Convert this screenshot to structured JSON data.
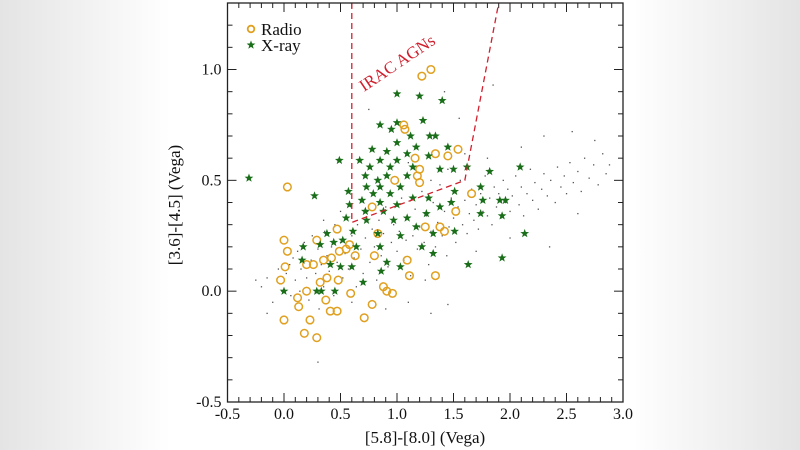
{
  "chart_data": {
    "type": "scatter",
    "xlabel": "[5.8]-[8.0] (Vega)",
    "ylabel": "[3.6]-[4.5] (Vega)",
    "xlim": [
      -0.5,
      3.0
    ],
    "ylim": [
      -0.5,
      1.3
    ],
    "xticks": [
      "-0.5",
      "0.0",
      "0.5",
      "1.0",
      "1.5",
      "2.0",
      "2.5",
      "3.0"
    ],
    "yticks": [
      "-0.5",
      "0.0",
      "0.5",
      "1.0"
    ],
    "grid": false,
    "legend_position": "top-left",
    "annotation": {
      "text": "IRAC AGNs",
      "color": "#d0202e"
    },
    "wedge": {
      "color": "#d0202e",
      "style": "dashed",
      "vertices": [
        [
          0.6,
          1.3
        ],
        [
          0.6,
          0.31
        ],
        [
          1.6,
          0.5
        ],
        [
          1.9,
          1.3
        ]
      ]
    },
    "series": [
      {
        "name": "",
        "marker": "dot",
        "color": "#555555",
        "points": [
          [
            -0.2,
            0.02
          ],
          [
            -0.15,
            0.06
          ],
          [
            -0.1,
            -0.05
          ],
          [
            -0.05,
            0.1
          ],
          [
            -0.02,
            0.0
          ],
          [
            0.02,
            0.08
          ],
          [
            0.05,
            0.12
          ],
          [
            0.06,
            -0.02
          ],
          [
            0.08,
            0.15
          ],
          [
            0.1,
            0.05
          ],
          [
            0.12,
            0.18
          ],
          [
            0.14,
            0.0
          ],
          [
            0.15,
            0.1
          ],
          [
            0.18,
            0.22
          ],
          [
            0.2,
            0.06
          ],
          [
            0.22,
            -0.04
          ],
          [
            0.24,
            0.14
          ],
          [
            0.25,
            0.25
          ],
          [
            0.28,
            0.08
          ],
          [
            0.3,
            0.19
          ],
          [
            0.31,
            -0.08
          ],
          [
            0.33,
            0.12
          ],
          [
            0.35,
            0.02
          ],
          [
            0.36,
            0.27
          ],
          [
            0.38,
            0.16
          ],
          [
            0.4,
            0.09
          ],
          [
            0.42,
            0.2
          ],
          [
            0.44,
            -0.02
          ],
          [
            0.45,
            0.3
          ],
          [
            0.47,
            0.13
          ],
          [
            0.5,
            0.22
          ],
          [
            0.52,
            0.06
          ],
          [
            0.54,
            0.17
          ],
          [
            0.55,
            0.33
          ],
          [
            0.57,
            0.1
          ],
          [
            0.6,
            0.25
          ],
          [
            0.62,
            0.15
          ],
          [
            0.64,
            0.02
          ],
          [
            0.65,
            0.3
          ],
          [
            0.68,
            0.19
          ],
          [
            0.7,
            0.08
          ],
          [
            0.72,
            0.24
          ],
          [
            0.74,
            0.36
          ],
          [
            0.76,
            0.13
          ],
          [
            0.78,
            0.28
          ],
          [
            0.8,
            0.2
          ],
          [
            0.82,
            0.05
          ],
          [
            0.84,
            0.32
          ],
          [
            0.86,
            0.16
          ],
          [
            0.88,
            0.26
          ],
          [
            0.9,
            0.38
          ],
          [
            0.92,
            0.11
          ],
          [
            0.95,
            0.22
          ],
          [
            0.97,
            0.3
          ],
          [
            1.0,
            0.18
          ],
          [
            1.02,
            0.27
          ],
          [
            1.04,
            0.42
          ],
          [
            1.06,
            0.14
          ],
          [
            1.08,
            0.23
          ],
          [
            1.1,
            0.33
          ],
          [
            1.12,
            0.07
          ],
          [
            1.14,
            0.25
          ],
          [
            1.16,
            0.37
          ],
          [
            1.18,
            0.19
          ],
          [
            1.2,
            0.29
          ],
          [
            1.22,
            0.45
          ],
          [
            1.24,
            0.22
          ],
          [
            1.26,
            0.34
          ],
          [
            1.28,
            0.12
          ],
          [
            1.3,
            0.27
          ],
          [
            1.32,
            0.4
          ],
          [
            1.34,
            0.2
          ],
          [
            1.36,
            0.31
          ],
          [
            1.38,
            0.48
          ],
          [
            1.4,
            0.25
          ],
          [
            1.42,
            0.36
          ],
          [
            1.44,
            0.16
          ],
          [
            1.46,
            0.29
          ],
          [
            1.48,
            0.42
          ],
          [
            1.5,
            0.33
          ],
          [
            1.52,
            0.22
          ],
          [
            1.54,
            0.38
          ],
          [
            1.56,
            0.5
          ],
          [
            1.58,
            0.3
          ],
          [
            1.6,
            0.41
          ],
          [
            1.62,
            0.26
          ],
          [
            1.64,
            0.35
          ],
          [
            1.66,
            0.46
          ],
          [
            1.68,
            0.32
          ],
          [
            1.7,
            0.39
          ],
          [
            1.72,
            0.28
          ],
          [
            1.74,
            0.44
          ],
          [
            1.76,
            0.36
          ],
          [
            1.78,
            0.52
          ],
          [
            1.8,
            0.34
          ],
          [
            1.82,
            0.42
          ],
          [
            1.84,
            0.3
          ],
          [
            1.86,
            0.47
          ],
          [
            1.88,
            0.38
          ],
          [
            1.9,
            0.44
          ],
          [
            1.92,
            0.33
          ],
          [
            1.94,
            0.5
          ],
          [
            1.96,
            0.4
          ],
          [
            1.98,
            0.46
          ],
          [
            2.0,
            0.36
          ],
          [
            2.02,
            0.43
          ],
          [
            2.05,
            0.52
          ],
          [
            2.08,
            0.39
          ],
          [
            2.1,
            0.47
          ],
          [
            2.12,
            0.34
          ],
          [
            2.15,
            0.44
          ],
          [
            2.18,
            0.55
          ],
          [
            2.2,
            0.41
          ],
          [
            2.22,
            0.49
          ],
          [
            2.25,
            0.37
          ],
          [
            2.28,
            0.46
          ],
          [
            2.3,
            0.53
          ],
          [
            2.33,
            0.43
          ],
          [
            2.36,
            0.5
          ],
          [
            2.4,
            0.4
          ],
          [
            2.42,
            0.56
          ],
          [
            2.45,
            0.47
          ],
          [
            2.48,
            0.52
          ],
          [
            2.5,
            0.44
          ],
          [
            2.53,
            0.58
          ],
          [
            2.56,
            0.49
          ],
          [
            2.6,
            0.54
          ],
          [
            2.63,
            0.45
          ],
          [
            2.66,
            0.6
          ],
          [
            2.7,
            0.51
          ],
          [
            2.74,
            0.57
          ],
          [
            2.78,
            0.48
          ],
          [
            2.82,
            0.62
          ],
          [
            2.85,
            0.53
          ],
          [
            2.88,
            0.57
          ],
          [
            1.3,
            0.5
          ],
          [
            1.1,
            0.58
          ],
          [
            1.45,
            0.55
          ],
          [
            1.6,
            0.62
          ],
          [
            1.8,
            0.6
          ],
          [
            2.1,
            0.65
          ],
          [
            2.3,
            0.7
          ],
          [
            2.55,
            0.72
          ],
          [
            2.75,
            0.68
          ],
          [
            1.42,
            0.9
          ],
          [
            0.75,
            0.82
          ],
          [
            1.55,
            0.78
          ],
          [
            1.85,
            0.93
          ],
          [
            0.9,
            -0.08
          ],
          [
            1.1,
            -0.05
          ],
          [
            1.45,
            -0.06
          ],
          [
            1.3,
            -0.1
          ],
          [
            0.3,
            -0.32
          ],
          [
            -0.15,
            -0.1
          ],
          [
            -0.25,
            0.05
          ],
          [
            2.0,
            0.24
          ],
          [
            2.35,
            0.2
          ],
          [
            2.6,
            0.35
          ],
          [
            1.7,
            0.18
          ],
          [
            1.25,
            0.05
          ],
          [
            0.6,
            -0.05
          ],
          [
            0.5,
            0.36
          ],
          [
            0.35,
            0.32
          ]
        ]
      },
      {
        "name": "Radio",
        "marker": "open-circle",
        "color": "#e0a020",
        "points": [
          [
            0.03,
            0.47
          ],
          [
            1.3,
            1.0
          ],
          [
            1.22,
            0.97
          ],
          [
            1.06,
            0.75
          ],
          [
            1.07,
            0.73
          ],
          [
            1.54,
            0.64
          ],
          [
            1.45,
            0.61
          ],
          [
            1.34,
            0.62
          ],
          [
            1.16,
            0.6
          ],
          [
            1.2,
            0.55
          ],
          [
            1.18,
            0.52
          ],
          [
            0.98,
            0.5
          ],
          [
            1.2,
            0.49
          ],
          [
            1.66,
            0.44
          ],
          [
            0.78,
            0.38
          ],
          [
            1.52,
            0.36
          ],
          [
            0.47,
            0.28
          ],
          [
            1.25,
            0.29
          ],
          [
            1.38,
            0.29
          ],
          [
            1.42,
            0.27
          ],
          [
            0.83,
            0.26
          ],
          [
            0.0,
            0.23
          ],
          [
            0.29,
            0.23
          ],
          [
            0.03,
            0.18
          ],
          [
            0.58,
            0.21
          ],
          [
            0.49,
            0.18
          ],
          [
            0.55,
            0.19
          ],
          [
            0.42,
            0.15
          ],
          [
            0.63,
            0.16
          ],
          [
            0.8,
            0.16
          ],
          [
            0.2,
            0.12
          ],
          [
            0.26,
            0.12
          ],
          [
            0.35,
            0.14
          ],
          [
            0.01,
            0.11
          ],
          [
            1.09,
            0.14
          ],
          [
            1.11,
            0.07
          ],
          [
            1.34,
            0.07
          ],
          [
            -0.03,
            0.05
          ],
          [
            0.32,
            0.04
          ],
          [
            0.38,
            0.06
          ],
          [
            0.48,
            0.05
          ],
          [
            0.88,
            0.02
          ],
          [
            0.91,
            0.0
          ],
          [
            0.96,
            -0.01
          ],
          [
            0.2,
            0.0
          ],
          [
            0.59,
            -0.01
          ],
          [
            0.12,
            -0.03
          ],
          [
            0.37,
            -0.04
          ],
          [
            0.13,
            -0.07
          ],
          [
            0.78,
            -0.06
          ],
          [
            0.41,
            -0.09
          ],
          [
            0.47,
            -0.09
          ],
          [
            0.0,
            -0.13
          ],
          [
            0.23,
            -0.13
          ],
          [
            0.71,
            -0.12
          ],
          [
            0.18,
            -0.19
          ],
          [
            0.29,
            -0.21
          ]
        ]
      },
      {
        "name": "X-ray",
        "marker": "star",
        "color": "#1a6e1a",
        "points": [
          [
            -0.31,
            0.51
          ],
          [
            0.49,
            0.59
          ],
          [
            0.27,
            0.43
          ],
          [
            1.0,
            0.89
          ],
          [
            1.2,
            0.88
          ],
          [
            1.4,
            0.86
          ],
          [
            1.23,
            0.77
          ],
          [
            0.85,
            0.75
          ],
          [
            1.0,
            0.76
          ],
          [
            0.95,
            0.73
          ],
          [
            1.29,
            0.7
          ],
          [
            1.34,
            0.7
          ],
          [
            1.12,
            0.7
          ],
          [
            1.0,
            0.67
          ],
          [
            1.17,
            0.65
          ],
          [
            1.45,
            0.65
          ],
          [
            0.78,
            0.64
          ],
          [
            0.91,
            0.63
          ],
          [
            1.09,
            0.62
          ],
          [
            1.28,
            0.61
          ],
          [
            0.67,
            0.59
          ],
          [
            0.85,
            0.59
          ],
          [
            1.0,
            0.59
          ],
          [
            0.76,
            0.56
          ],
          [
            0.94,
            0.56
          ],
          [
            1.14,
            0.56
          ],
          [
            1.38,
            0.55
          ],
          [
            1.5,
            0.55
          ],
          [
            1.62,
            0.56
          ],
          [
            1.82,
            0.54
          ],
          [
            2.09,
            0.56
          ],
          [
            0.72,
            0.52
          ],
          [
            0.83,
            0.5
          ],
          [
            0.91,
            0.52
          ],
          [
            1.09,
            0.52
          ],
          [
            0.73,
            0.47
          ],
          [
            0.85,
            0.47
          ],
          [
            1.03,
            0.47
          ],
          [
            0.57,
            0.45
          ],
          [
            1.74,
            0.47
          ],
          [
            0.79,
            0.44
          ],
          [
            0.94,
            0.44
          ],
          [
            1.14,
            0.42
          ],
          [
            1.28,
            0.42
          ],
          [
            1.51,
            0.45
          ],
          [
            0.69,
            0.41
          ],
          [
            0.85,
            0.4
          ],
          [
            1.0,
            0.39
          ],
          [
            0.58,
            0.39
          ],
          [
            1.48,
            0.4
          ],
          [
            1.76,
            0.41
          ],
          [
            1.91,
            0.41
          ],
          [
            1.96,
            0.41
          ],
          [
            0.72,
            0.36
          ],
          [
            0.88,
            0.36
          ],
          [
            1.09,
            0.33
          ],
          [
            1.26,
            0.35
          ],
          [
            1.74,
            0.35
          ],
          [
            1.93,
            0.34
          ],
          [
            0.55,
            0.33
          ],
          [
            0.73,
            0.32
          ],
          [
            0.97,
            0.32
          ],
          [
            0.61,
            0.27
          ],
          [
            0.83,
            0.26
          ],
          [
            1.03,
            0.25
          ],
          [
            1.51,
            0.27
          ],
          [
            2.13,
            0.26
          ],
          [
            0.38,
            0.26
          ],
          [
            0.44,
            0.22
          ],
          [
            0.52,
            0.23
          ],
          [
            0.17,
            0.2
          ],
          [
            0.32,
            0.21
          ],
          [
            0.64,
            0.2
          ],
          [
            0.85,
            0.2
          ],
          [
            1.22,
            0.2
          ],
          [
            1.32,
            0.17
          ],
          [
            1.93,
            0.15
          ],
          [
            0.16,
            0.14
          ],
          [
            0.41,
            0.12
          ],
          [
            0.5,
            0.11
          ],
          [
            0.91,
            0.13
          ],
          [
            1.03,
            0.11
          ],
          [
            1.63,
            0.12
          ],
          [
            0.86,
            0.09
          ],
          [
            0.7,
            0.04
          ],
          [
            0.29,
            0.0
          ],
          [
            0.33,
            0.0
          ],
          [
            0.45,
            0.0
          ],
          [
            0.0,
            0.0
          ],
          [
            0.6,
            0.11
          ],
          [
            1.17,
            0.29
          ],
          [
            1.32,
            0.26
          ],
          [
            1.38,
            0.38
          ]
        ]
      }
    ]
  }
}
